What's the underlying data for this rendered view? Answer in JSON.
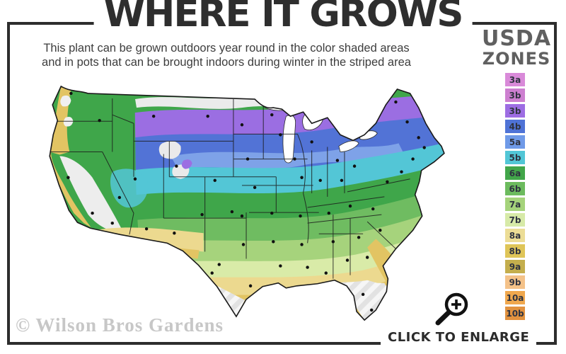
{
  "header": {
    "title": "WHERE IT GROWS",
    "subtitle_line1": "This plant can be grown outdoors year round in the color shaded areas",
    "subtitle_line2": "and in pots that can be brought indoors during winter in the striped area"
  },
  "legend": {
    "title_line1": "USDA",
    "title_line2": "ZONES",
    "zones": [
      {
        "label": "3a",
        "color": "#d98ad9"
      },
      {
        "label": "3b",
        "color": "#cd7fd0"
      },
      {
        "label": "3b",
        "color": "#9d6de3"
      },
      {
        "label": "4b",
        "color": "#4f73d6"
      },
      {
        "label": "5a",
        "color": "#6f9ae8"
      },
      {
        "label": "5b",
        "color": "#52c6d6"
      },
      {
        "label": "6a",
        "color": "#42a64a"
      },
      {
        "label": "6b",
        "color": "#6cbb5e"
      },
      {
        "label": "7a",
        "color": "#a5d37b"
      },
      {
        "label": "7b",
        "color": "#d7eaa8"
      },
      {
        "label": "8a",
        "color": "#ecdd96"
      },
      {
        "label": "8b",
        "color": "#dfc558"
      },
      {
        "label": "9a",
        "color": "#c4ae4d"
      },
      {
        "label": "9b",
        "color": "#f4c289"
      },
      {
        "label": "10a",
        "color": "#f0a84e"
      },
      {
        "label": "10b",
        "color": "#e2923f"
      }
    ]
  },
  "footer": {
    "watermark": "© Wilson Bros Gardens",
    "enlarge_label": "CLICK TO ENLARGE"
  }
}
